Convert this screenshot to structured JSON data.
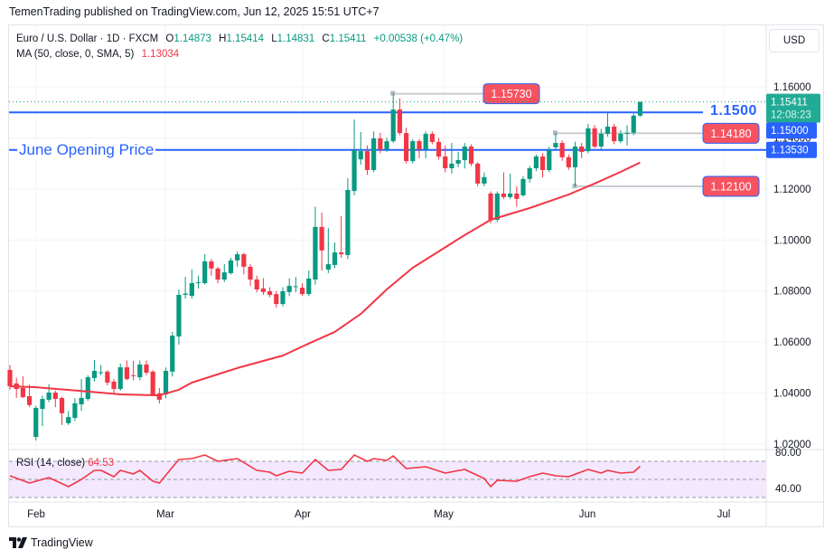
{
  "publish_line": "TemenTrading published on TradingView.com, Jun 12, 2025 15:51 UTC+7",
  "legend": {
    "symbol": "Euro / U.S. Dollar · 1D · FXCM",
    "o_label": "O",
    "o": "1.14873",
    "h_label": "H",
    "h": "1.15414",
    "l_label": "L",
    "l": "1.14831",
    "c_label": "C",
    "c": "1.15411",
    "change": "+0.00538 (+0.47%)",
    "ma_label": "MA (50, close, 0, SMA, 5)",
    "ma_value": "1.13034"
  },
  "currency_button": "USD",
  "footer_brand": "TradingView",
  "colors": {
    "up": "#089981",
    "down": "#f23645",
    "ma": "#f23645",
    "level": "#2962ff",
    "rsi": "#f23645",
    "rsi_band": "#f3e8fd"
  },
  "chart_data": {
    "type": "candlestick",
    "title": "",
    "timeframe": "1D",
    "price_axis": {
      "ticks": [
        "1.16000",
        "1.14000",
        "1.12000",
        "1.10000",
        "1.08000",
        "1.06000",
        "1.04000",
        "1.02000"
      ],
      "range": [
        1.0185,
        1.1715
      ]
    },
    "time_axis": {
      "ticks": [
        "Feb",
        "Mar",
        "Apr",
        "May",
        "Jun",
        "Jul"
      ]
    },
    "grid": true,
    "last_price": {
      "value": "1.15411",
      "countdown": "12:08:23"
    },
    "axis_badges": [
      {
        "value": "1.15000"
      },
      {
        "value": "1.13530"
      }
    ],
    "levels": [
      {
        "value": 1.15,
        "label": "1.1500"
      },
      {
        "value": 1.1353,
        "label": "June Opening Price"
      }
    ],
    "markers": [
      {
        "value": 1.1573,
        "label": "1.15730",
        "from": "Apr 21"
      },
      {
        "value": 1.1418,
        "label": "1.14180",
        "from": "May 26"
      },
      {
        "value": 1.121,
        "label": "1.12100",
        "from": "May 29"
      }
    ],
    "candles_columns": [
      "date",
      "open",
      "high",
      "low",
      "close"
    ],
    "candles": [
      [
        "Jan 28",
        1.0491,
        1.051,
        1.0413,
        1.0427
      ],
      [
        "Jan 29",
        1.0438,
        1.046,
        1.0381,
        1.0416
      ],
      [
        "Jan 30",
        1.042,
        1.0466,
        1.038,
        1.0384
      ],
      [
        "Jan 31",
        1.0388,
        1.0434,
        1.0345,
        1.0353
      ],
      [
        "Feb 3",
        1.0228,
        1.035,
        1.0214,
        1.0342
      ],
      [
        "Feb 4",
        1.0338,
        1.039,
        1.0271,
        1.0377
      ],
      [
        "Feb 5",
        1.0374,
        1.0435,
        1.0365,
        1.0402
      ],
      [
        "Feb 6",
        1.0402,
        1.041,
        1.0345,
        1.0377
      ],
      [
        "Feb 7",
        1.0381,
        1.0385,
        1.0275,
        1.0321
      ],
      [
        "Feb 10",
        1.0282,
        1.033,
        1.0275,
        1.0306
      ],
      [
        "Feb 11",
        1.0303,
        1.038,
        1.029,
        1.036
      ],
      [
        "Feb 12",
        1.0356,
        1.0455,
        1.033,
        1.0381
      ],
      [
        "Feb 13",
        1.0377,
        1.047,
        1.037,
        1.0462
      ],
      [
        "Feb 14",
        1.0459,
        1.053,
        1.0445,
        1.0487
      ],
      [
        "Feb 17",
        1.048,
        1.051,
        1.047,
        1.0482
      ],
      [
        "Feb 18",
        1.0484,
        1.049,
        1.043,
        1.0441
      ],
      [
        "Feb 19",
        1.0445,
        1.0455,
        1.04,
        1.0416
      ],
      [
        "Feb 20",
        1.0416,
        1.0515,
        1.041,
        1.0501
      ],
      [
        "Feb 21",
        1.0501,
        1.0528,
        1.045,
        1.0455
      ],
      [
        "Feb 24",
        1.047,
        1.0526,
        1.045,
        1.0469
      ],
      [
        "Feb 25",
        1.0462,
        1.0528,
        1.045,
        1.0512
      ],
      [
        "Feb 26",
        1.0512,
        1.0528,
        1.047,
        1.048
      ],
      [
        "Feb 27",
        1.0484,
        1.049,
        1.039,
        1.0395
      ],
      [
        "Feb 28",
        1.0399,
        1.042,
        1.0359,
        1.0374
      ],
      [
        "Mar 3",
        1.0395,
        1.05,
        1.038,
        1.0487
      ],
      [
        "Mar 4",
        1.0484,
        1.064,
        1.0465,
        1.0625
      ],
      [
        "Mar 5",
        1.0622,
        1.0805,
        1.059,
        1.0785
      ],
      [
        "Mar 6",
        1.0785,
        1.0855,
        1.077,
        1.079
      ],
      [
        "Mar 7",
        1.0781,
        1.0885,
        1.077,
        1.0831
      ],
      [
        "Mar 10",
        1.0831,
        1.086,
        1.081,
        1.0834
      ],
      [
        "Mar 11",
        1.0831,
        1.0945,
        1.0825,
        1.0916
      ],
      [
        "Mar 12",
        1.0916,
        1.0925,
        1.086,
        1.0888
      ],
      [
        "Mar 13",
        1.0888,
        1.0895,
        1.083,
        1.0845
      ],
      [
        "Mar 14",
        1.0845,
        1.0905,
        1.0835,
        1.0873
      ],
      [
        "Mar 17",
        1.087,
        1.093,
        1.0865,
        1.092
      ],
      [
        "Mar 18",
        1.092,
        1.0955,
        1.0895,
        1.0944
      ],
      [
        "Mar 19",
        1.0944,
        1.095,
        1.0865,
        1.0895
      ],
      [
        "Mar 20",
        1.0895,
        1.0905,
        1.082,
        1.0845
      ],
      [
        "Mar 21",
        1.0845,
        1.086,
        1.0795,
        1.0806
      ],
      [
        "Mar 24",
        1.081,
        1.085,
        1.0785,
        1.0796
      ],
      [
        "Mar 25",
        1.0799,
        1.0815,
        1.0775,
        1.0785
      ],
      [
        "Mar 26",
        1.0788,
        1.08,
        1.0735,
        1.0749
      ],
      [
        "Mar 27",
        1.0749,
        1.0815,
        1.074,
        1.0799
      ],
      [
        "Mar 28",
        1.0796,
        1.085,
        1.078,
        1.082
      ],
      [
        "Mar 31",
        1.0817,
        1.0855,
        1.0795,
        1.0819
      ],
      [
        "Apr 1",
        1.0813,
        1.083,
        1.078,
        1.0788
      ],
      [
        "Apr 2",
        1.0788,
        1.088,
        1.078,
        1.0849
      ],
      [
        "Apr 3",
        1.0845,
        1.113,
        1.0825,
        1.1051
      ],
      [
        "Apr 4",
        1.1051,
        1.1107,
        1.088,
        1.0959
      ],
      [
        "Apr 7",
        1.0884,
        1.1047,
        1.087,
        1.0905
      ],
      [
        "Apr 8",
        1.0902,
        1.099,
        1.089,
        1.0951
      ],
      [
        "Apr 9",
        1.0951,
        1.1093,
        1.093,
        1.0944
      ],
      [
        "Apr 10",
        1.0941,
        1.1242,
        1.0925,
        1.1196
      ],
      [
        "Apr 11",
        1.1192,
        1.1472,
        1.1175,
        1.1352
      ],
      [
        "Apr 14",
        1.1316,
        1.1423,
        1.1295,
        1.1348
      ],
      [
        "Apr 15",
        1.1348,
        1.137,
        1.1255,
        1.1274
      ],
      [
        "Apr 16",
        1.1274,
        1.1425,
        1.1265,
        1.1398
      ],
      [
        "Apr 17",
        1.1398,
        1.142,
        1.134,
        1.1355
      ],
      [
        "Apr 18",
        1.1355,
        1.14,
        1.1345,
        1.1387
      ],
      [
        "Apr 21",
        1.1387,
        1.1573,
        1.138,
        1.1511
      ],
      [
        "Apr 22",
        1.1511,
        1.1555,
        1.141,
        1.1419
      ],
      [
        "Apr 23",
        1.1419,
        1.144,
        1.13,
        1.1309
      ],
      [
        "Apr 24",
        1.1309,
        1.1395,
        1.13,
        1.1387
      ],
      [
        "Apr 25",
        1.1387,
        1.1395,
        1.132,
        1.1355
      ],
      [
        "Apr 28",
        1.1355,
        1.1425,
        1.132,
        1.1416
      ],
      [
        "Apr 29",
        1.1416,
        1.1425,
        1.1375,
        1.1384
      ],
      [
        "Apr 30",
        1.1384,
        1.14,
        1.1315,
        1.1327
      ],
      [
        "May 1",
        1.1327,
        1.137,
        1.1265,
        1.1281
      ],
      [
        "May 2",
        1.1281,
        1.138,
        1.126,
        1.1299
      ],
      [
        "May 5",
        1.1299,
        1.1345,
        1.1285,
        1.1313
      ],
      [
        "May 6",
        1.1313,
        1.138,
        1.128,
        1.1366
      ],
      [
        "May 7",
        1.1366,
        1.1375,
        1.129,
        1.1299
      ],
      [
        "May 8",
        1.1299,
        1.1305,
        1.121,
        1.1221
      ],
      [
        "May 9",
        1.1221,
        1.1265,
        1.121,
        1.1246
      ],
      [
        "May 12",
        1.1182,
        1.119,
        1.1065,
        1.1079
      ],
      [
        "May 13",
        1.1079,
        1.119,
        1.107,
        1.1182
      ],
      [
        "May 14",
        1.1182,
        1.1265,
        1.116,
        1.1168
      ],
      [
        "May 15",
        1.1168,
        1.126,
        1.116,
        1.1182
      ],
      [
        "May 16",
        1.1182,
        1.121,
        1.113,
        1.1161
      ],
      [
        "May 19",
        1.1175,
        1.125,
        1.117,
        1.1239
      ],
      [
        "May 20",
        1.1239,
        1.129,
        1.1225,
        1.1281
      ],
      [
        "May 21",
        1.1281,
        1.1335,
        1.127,
        1.1327
      ],
      [
        "May 22",
        1.1327,
        1.134,
        1.1245,
        1.1274
      ],
      [
        "May 23",
        1.1274,
        1.1365,
        1.1265,
        1.1352
      ],
      [
        "May 26",
        1.1363,
        1.1418,
        1.1355,
        1.138
      ],
      [
        "May 27",
        1.138,
        1.139,
        1.131,
        1.1324
      ],
      [
        "May 28",
        1.1324,
        1.1335,
        1.1275,
        1.1285
      ],
      [
        "May 29",
        1.1285,
        1.1385,
        1.121,
        1.1366
      ],
      [
        "May 30",
        1.1366,
        1.138,
        1.132,
        1.1345
      ],
      [
        "Jun 2",
        1.1348,
        1.1455,
        1.134,
        1.1437
      ],
      [
        "Jun 3",
        1.1437,
        1.145,
        1.136,
        1.1366
      ],
      [
        "Jun 4",
        1.1366,
        1.1435,
        1.1355,
        1.1416
      ],
      [
        "Jun 5",
        1.1416,
        1.1497,
        1.1405,
        1.1444
      ],
      [
        "Jun 6",
        1.1444,
        1.1455,
        1.1375,
        1.1387
      ],
      [
        "Jun 9",
        1.1387,
        1.143,
        1.138,
        1.1416
      ],
      [
        "Jun 10",
        1.1416,
        1.145,
        1.137,
        1.142
      ],
      [
        "Jun 11",
        1.142,
        1.1495,
        1.141,
        1.1487
      ],
      [
        "Jun 12",
        1.14873,
        1.15414,
        1.14831,
        1.15411
      ]
    ],
    "ma50": [
      [
        "Jan 28",
        1.0427
      ],
      [
        "Feb 3",
        1.0423
      ],
      [
        "Feb 13",
        1.0406
      ],
      [
        "Feb 20",
        1.0395
      ],
      [
        "Feb 28",
        1.0391
      ],
      [
        "Mar 5",
        1.0413
      ],
      [
        "Mar 7",
        1.0441
      ],
      [
        "Mar 18",
        1.0498
      ],
      [
        "Mar 27",
        1.0547
      ],
      [
        "Apr 2",
        1.0594
      ],
      [
        "Apr 8",
        1.064
      ],
      [
        "Apr 14",
        1.071
      ],
      [
        "Apr 18",
        1.0806
      ],
      [
        "Apr 24",
        1.0891
      ],
      [
        "Apr 30",
        1.0955
      ],
      [
        "May 6",
        1.1019
      ],
      [
        "May 12",
        1.1079
      ],
      [
        "May 20",
        1.1125
      ],
      [
        "May 28",
        1.1178
      ],
      [
        "Jun 3",
        1.1221
      ],
      [
        "Jun 9",
        1.1267
      ],
      [
        "Jun 12",
        1.13034
      ]
    ],
    "rsi": {
      "label": "RSI (14, close)",
      "value": "64.53",
      "ticks": [
        "80.00",
        "40.00"
      ],
      "band": [
        30,
        70
      ],
      "points": [
        [
          "Jan 28",
          54
        ],
        [
          "Jan 31",
          46
        ],
        [
          "Feb 5",
          52
        ],
        [
          "Feb 10",
          42
        ],
        [
          "Feb 12",
          50
        ],
        [
          "Feb 14",
          60
        ],
        [
          "Feb 17",
          60
        ],
        [
          "Feb 19",
          53
        ],
        [
          "Feb 20",
          60
        ],
        [
          "Feb 24",
          56
        ],
        [
          "Feb 25",
          60
        ],
        [
          "Feb 27",
          48
        ],
        [
          "Feb 28",
          46
        ],
        [
          "Mar 5",
          72
        ],
        [
          "Mar 7",
          73
        ],
        [
          "Mar 11",
          77
        ],
        [
          "Mar 13",
          70
        ],
        [
          "Mar 18",
          73
        ],
        [
          "Mar 21",
          60
        ],
        [
          "Mar 25",
          58
        ],
        [
          "Mar 26",
          54
        ],
        [
          "Mar 28",
          59
        ],
        [
          "Apr 1",
          57
        ],
        [
          "Apr 3",
          72
        ],
        [
          "Apr 7",
          60
        ],
        [
          "Apr 9",
          61
        ],
        [
          "Apr 11",
          77
        ],
        [
          "Apr 15",
          70
        ],
        [
          "Apr 16",
          73
        ],
        [
          "Apr 18",
          71
        ],
        [
          "Apr 21",
          76
        ],
        [
          "Apr 23",
          62
        ],
        [
          "Apr 28",
          64
        ],
        [
          "May 1",
          57
        ],
        [
          "May 6",
          61
        ],
        [
          "May 9",
          51
        ],
        [
          "May 12",
          42
        ],
        [
          "May 13",
          49
        ],
        [
          "May 16",
          48
        ],
        [
          "May 20",
          53
        ],
        [
          "May 22",
          57
        ],
        [
          "May 26",
          54
        ],
        [
          "May 28",
          53
        ],
        [
          "Jun 2",
          61
        ],
        [
          "Jun 4",
          57
        ],
        [
          "Jun 5",
          60
        ],
        [
          "Jun 9",
          57
        ],
        [
          "Jun 11",
          58
        ],
        [
          "Jun 12",
          64.53
        ]
      ]
    }
  }
}
